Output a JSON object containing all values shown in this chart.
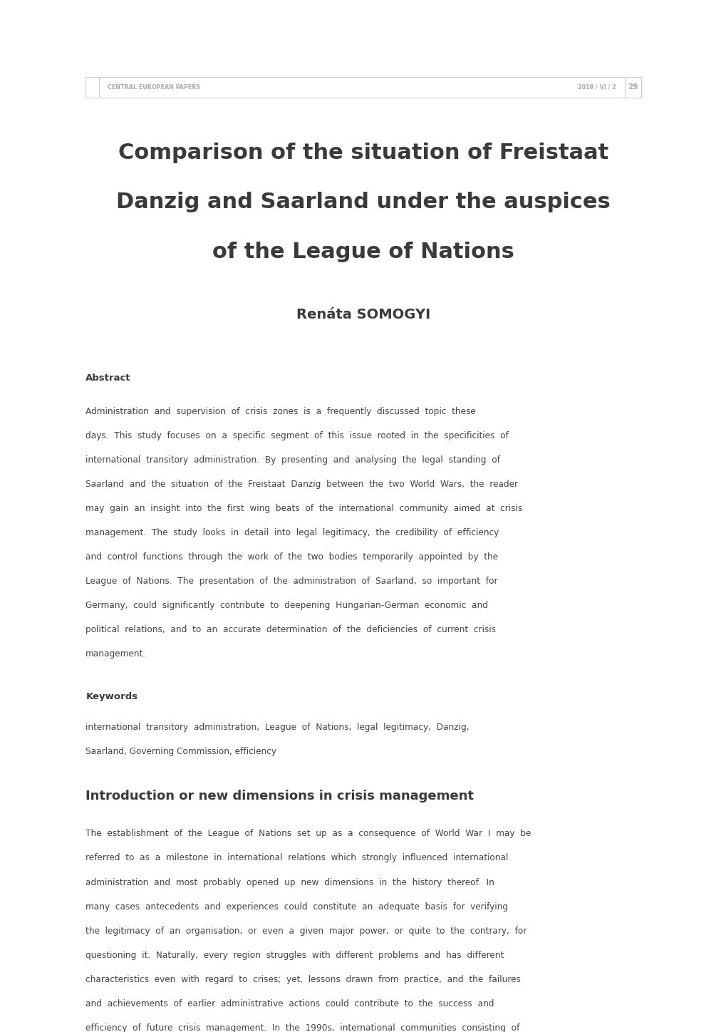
{
  "bg_color": "#ffffff",
  "header_journal": "CENTRAL EUROPEAN PAPERS",
  "header_date": "2018 / VI / 2",
  "header_page": "29",
  "header_color": "#aaaaaa",
  "header_line_color": "#cccccc",
  "title_line1": "Comparison of the situation of Freistaat",
  "title_line2": "Danzig and Saarland under the auspices",
  "title_line3": "of the League of Nations",
  "title_color": "#3a3a3a",
  "author": "Renáta SOMOGYI",
  "author_color": "#3a3a3a",
  "abstract_label": "Abstract",
  "abstract_lines": [
    "Administration  and  supervision  of  crisis  zones  is  a  frequently  discussed  topic  these",
    "days.  This  study  focuses  on  a  specific  segment  of  this  issue  rooted  in  the  specificities  of",
    "international  transitory  administration.  By  presenting  and  analysing  the  legal  standing  of",
    "Saarland  and  the  situation  of  the  Freistaat  Danzig  between  the  two  World  Wars,  the  reader",
    "may  gain  an  insight  into  the  first  wing  beats  of  the  international  community  aimed  at  crisis",
    "management.  The  study  looks  in  detail  into  legal  legitimacy,  the  credibility  of  efficiency",
    "and  control  functions  through  the  work  of  the  two  bodies  temporarily  appointed  by  the",
    "League  of  Nations.  The  presentation  of  the  administration  of  Saarland,  so  important  for",
    "Germany,  could  significantly  contribute  to  deepening  Hungarian-German  economic  and",
    "political  relations,  and  to  an  accurate  determination  of  the  deficiencies  of  current  crisis",
    "management."
  ],
  "keywords_label": "Keywords",
  "keywords_lines": [
    "international  transitory  administration,  League  of  Nations,  legal  legitimacy,  Danzig,",
    "Saarland, Governing Commission, efficiency"
  ],
  "section_title": "Introduction or new dimensions in crisis management",
  "section_lines": [
    "The  establishment  of  the  League  of  Nations  set  up  as  a  consequence  of  World  War  I  may  be",
    "referred  to  as  a  milestone  in  international  relations  which  strongly  influenced  international",
    "administration  and  most  probably  opened  up  new  dimensions  in  the  history  thereof.  In",
    "many  cases  antecedents  and  experiences  could  constitute  an  adequate  basis  for  verifying",
    "the  legitimacy  of  an  organisation,  or  even  a  given  major  power,  or  quite  to  the  contrary,  for",
    "questioning  it.  Naturally,  every  region  struggles  with  different  problems  and  has  different",
    "characteristics  even  with  regard  to  crises;  yet,  lessons  drawn  from  practice,  and  the  failures",
    "and  achievements  of  earlier  administrative  actions  could  contribute  to  the  success  and",
    "efficiency  of  future  crisis  management.  In  the  1990s,  international  communities  consisting  of"
  ],
  "text_color": "#3a3a3a",
  "body_text_color": "#444444",
  "ml": 0.118,
  "mr": 0.882
}
